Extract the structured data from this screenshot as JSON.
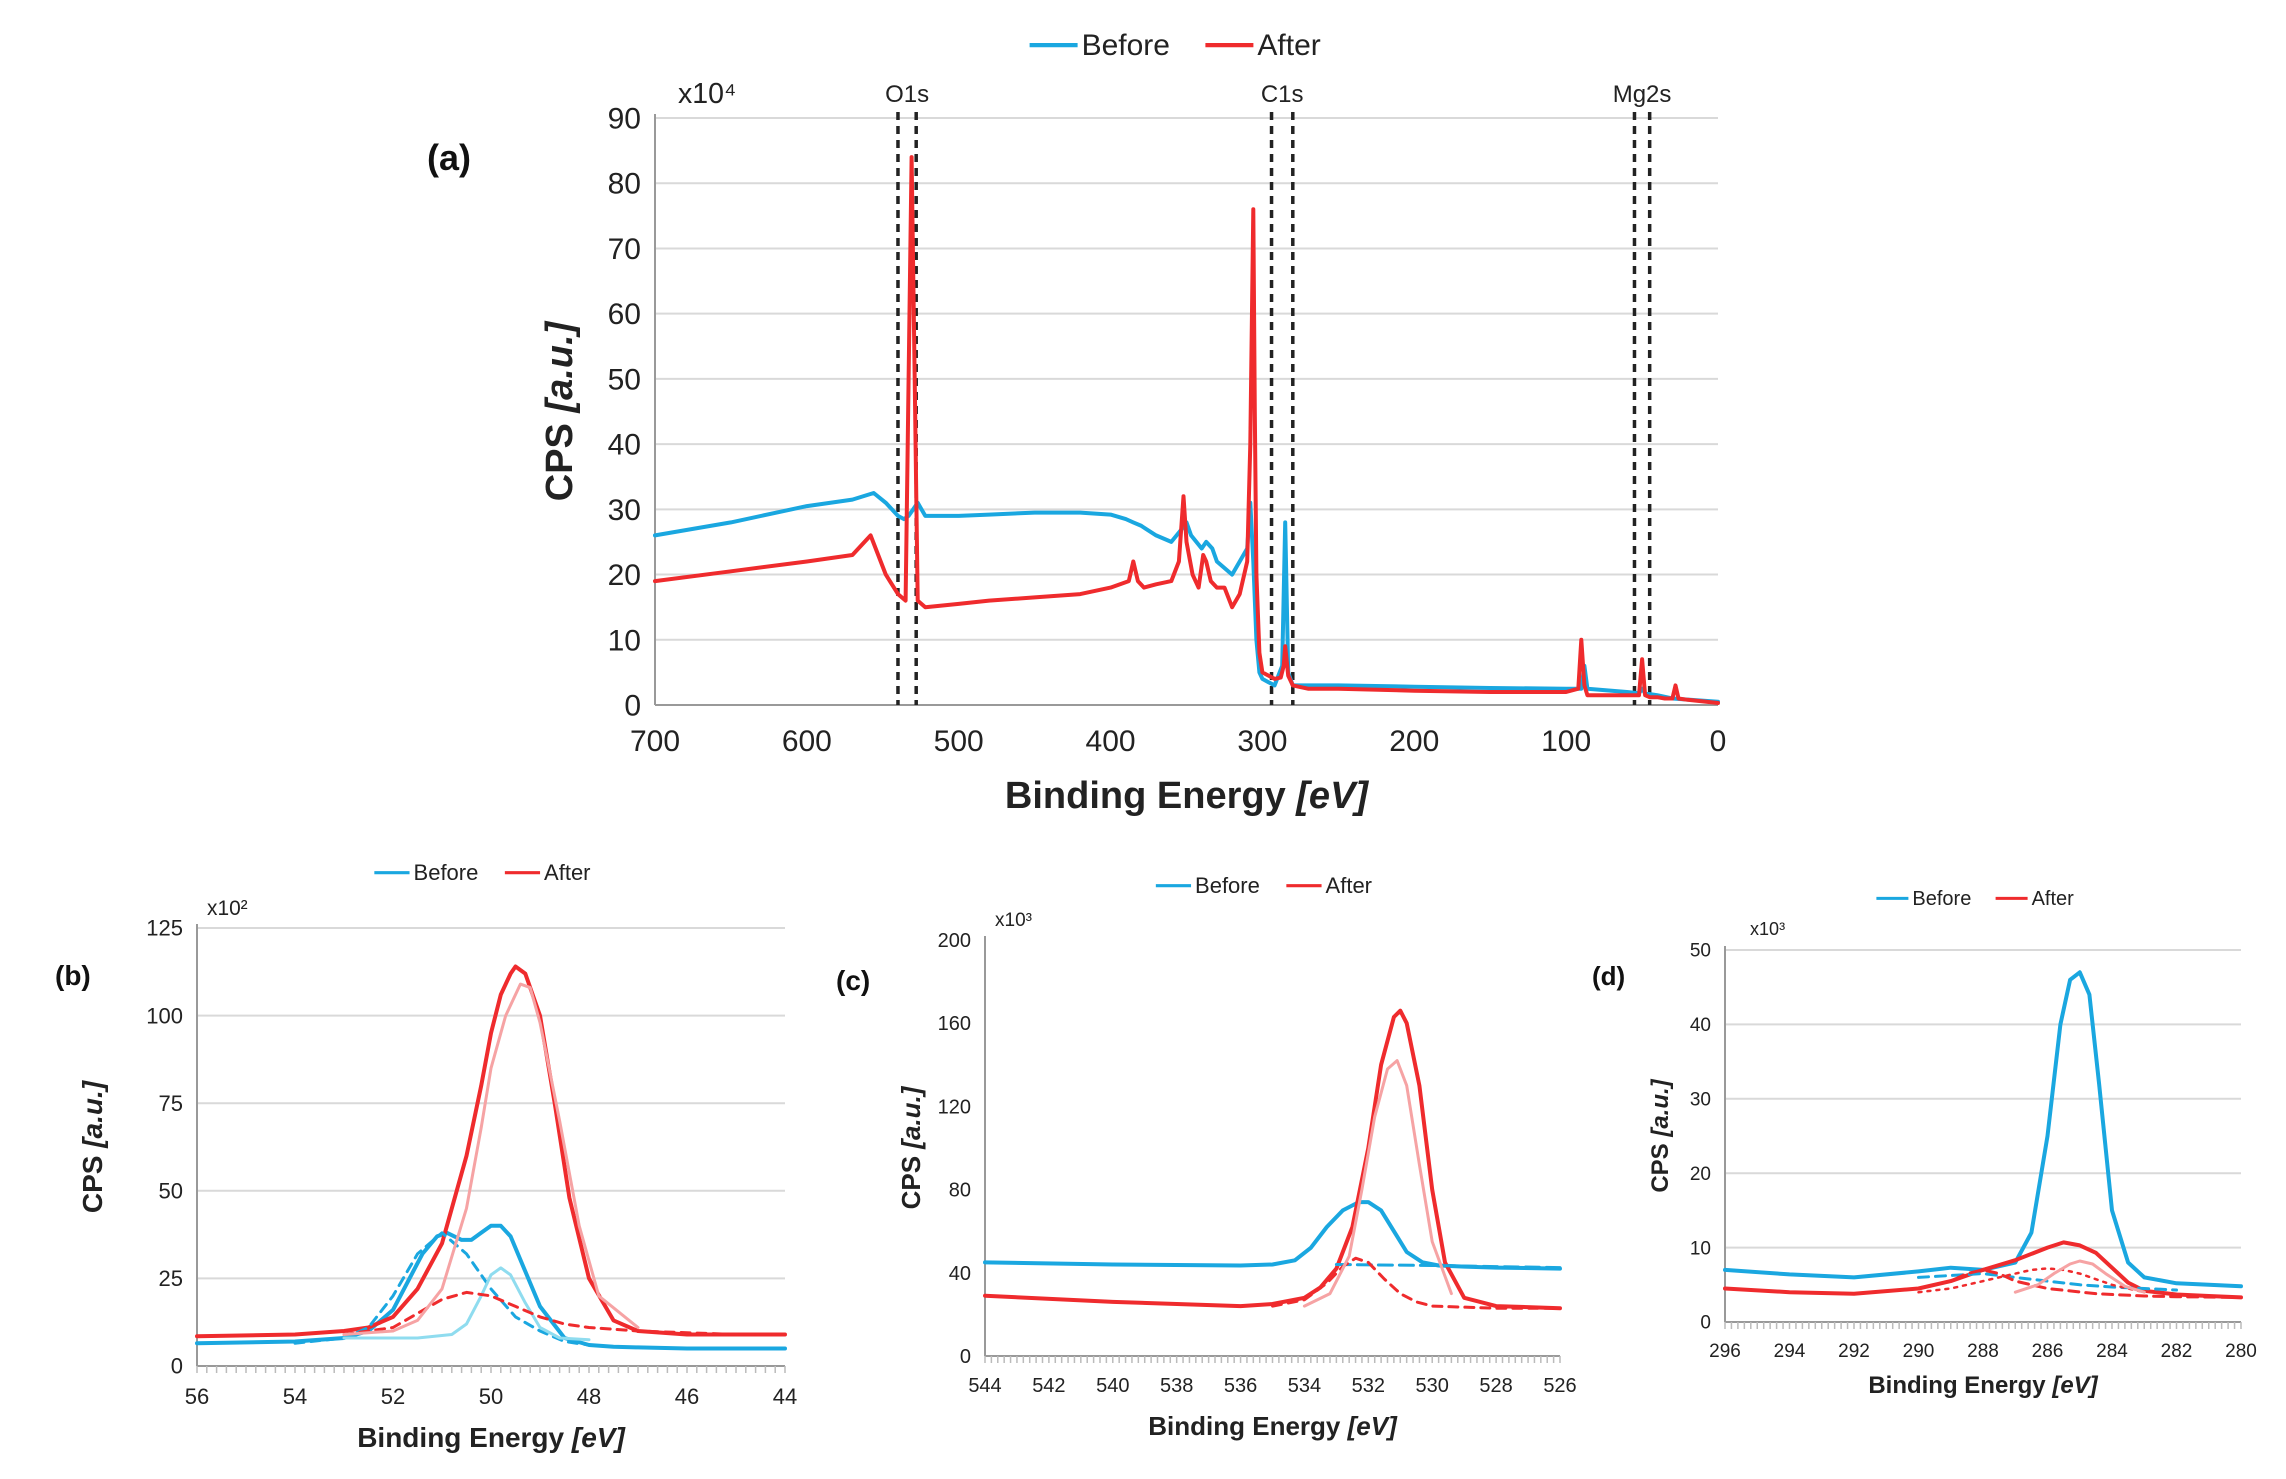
{
  "colors": {
    "before": "#1aa7e0",
    "after": "#ef2b2d",
    "before_light": "#8fdcef",
    "after_light": "#f6a3a4",
    "grid": "#d9d9d9"
  },
  "chart_data": [
    {
      "id": "a",
      "panel_label": "(a)",
      "type": "line",
      "title": "",
      "xlabel": "Binding Energy",
      "xlabel_unit": "[eV]",
      "ylabel": "CPS",
      "ylabel_unit": "[a.u.]",
      "multiplier": "x10⁴",
      "xlim": [
        700,
        0
      ],
      "ylim": [
        0,
        90
      ],
      "xticks": [
        700,
        600,
        500,
        400,
        300,
        200,
        100,
        0
      ],
      "yticks": [
        0,
        10,
        20,
        30,
        40,
        50,
        60,
        70,
        80,
        90
      ],
      "grid": true,
      "legend": "top",
      "annotations": [
        {
          "text": "O1s",
          "lines": [
            540,
            528
          ]
        },
        {
          "text": "C1s",
          "lines": [
            294,
            280
          ]
        },
        {
          "text": "Mg2s",
          "lines": [
            55,
            45
          ]
        }
      ],
      "series": [
        {
          "name": "Before",
          "color": "before",
          "width": 4,
          "x": [
            700,
            650,
            600,
            570,
            556,
            548,
            540,
            536,
            533,
            530,
            527,
            522,
            500,
            480,
            450,
            420,
            400,
            390,
            385,
            380,
            370,
            360,
            353,
            350,
            347,
            340,
            337,
            333,
            330,
            320,
            315,
            310,
            308,
            306,
            304,
            302,
            300,
            296,
            292,
            287,
            285,
            283,
            280,
            270,
            250,
            200,
            150,
            100,
            90,
            88,
            86,
            60,
            52,
            50,
            48,
            40,
            30,
            0
          ],
          "y": [
            26,
            28,
            30.5,
            31.5,
            32.5,
            31,
            29,
            28.5,
            29,
            30,
            31,
            29,
            29,
            29.2,
            29.5,
            29.5,
            29.2,
            28.5,
            28,
            27.5,
            26,
            25,
            27,
            28,
            26,
            24,
            25,
            24,
            22,
            20,
            22,
            24,
            31,
            22,
            10,
            5,
            4,
            3.5,
            3,
            6,
            28,
            5,
            3,
            3,
            3,
            2.8,
            2.6,
            2.5,
            2.5,
            6,
            2.5,
            2,
            1.8,
            2.5,
            1.8,
            1.5,
            1,
            0.5
          ]
        },
        {
          "name": "After",
          "color": "after",
          "width": 4,
          "x": [
            700,
            650,
            600,
            570,
            558,
            553,
            548,
            540,
            535,
            533,
            531,
            529,
            527,
            522,
            500,
            480,
            450,
            420,
            400,
            388,
            385,
            382,
            378,
            370,
            360,
            355,
            352,
            350,
            346,
            342,
            339,
            337,
            334,
            330,
            325,
            320,
            315,
            310,
            308,
            306,
            305,
            304,
            302,
            300,
            296,
            292,
            288,
            286,
            285,
            283,
            280,
            270,
            250,
            200,
            150,
            100,
            92,
            90,
            88,
            86,
            60,
            52,
            50,
            48,
            45,
            40,
            35,
            30,
            28,
            26,
            20,
            0
          ],
          "y": [
            19,
            20.5,
            22,
            23,
            26,
            23,
            20,
            17,
            16,
            50,
            84,
            50,
            16,
            15,
            15.5,
            16,
            16.5,
            17,
            18,
            19,
            22,
            19,
            18,
            18.5,
            19,
            22,
            32,
            25,
            20,
            18,
            23,
            22,
            19,
            18,
            18,
            15,
            17,
            22,
            40,
            76,
            45,
            20,
            8,
            5,
            4.5,
            4,
            4.2,
            6,
            9,
            4.5,
            3,
            2.5,
            2.5,
            2.2,
            2,
            2,
            2.5,
            10,
            3,
            1.5,
            1.5,
            1.5,
            7,
            1.5,
            1.2,
            1.2,
            1,
            1,
            3,
            1,
            0.8,
            0.3
          ]
        }
      ]
    },
    {
      "id": "b",
      "panel_label": "(b)",
      "type": "line",
      "title": "",
      "xlabel": "Binding Energy",
      "xlabel_unit": "[eV]",
      "ylabel": "CPS",
      "ylabel_unit": "[a.u.]",
      "multiplier": "x10²",
      "xlim": [
        56,
        44
      ],
      "ylim": [
        0,
        125
      ],
      "xticks": [
        56,
        54,
        52,
        50,
        48,
        46,
        44
      ],
      "yticks": [
        0,
        25,
        50,
        75,
        100,
        125
      ],
      "grid": true,
      "legend": "top",
      "series": [
        {
          "name": "Before",
          "legend": true,
          "color": "before",
          "width": 4,
          "x": [
            56,
            54,
            53,
            52.5,
            52,
            51.7,
            51.4,
            51.1,
            50.9,
            50.6,
            50.4,
            50.2,
            50,
            49.8,
            49.6,
            49.3,
            49,
            48.5,
            48,
            47.5,
            47,
            46,
            45,
            44
          ],
          "y": [
            6.5,
            7,
            8,
            10,
            16,
            24,
            32,
            37,
            38,
            36,
            36,
            38,
            40,
            40,
            37,
            27,
            17,
            8,
            6,
            5.5,
            5.3,
            5,
            5,
            5
          ]
        },
        {
          "name": "After",
          "legend": true,
          "color": "after",
          "width": 4,
          "x": [
            56,
            54,
            53,
            52.5,
            52,
            51.5,
            51,
            50.5,
            50.2,
            50,
            49.8,
            49.6,
            49.5,
            49.3,
            49,
            48.7,
            48.4,
            48,
            47.5,
            47,
            46,
            45,
            44
          ],
          "y": [
            8.5,
            9,
            10,
            11,
            14,
            22,
            35,
            60,
            80,
            95,
            106,
            112,
            114,
            112,
            100,
            75,
            48,
            25,
            13,
            10,
            9,
            9,
            9
          ]
        },
        {
          "name": "Before fit 1",
          "legend": false,
          "color": "before",
          "width": 3,
          "dash": "9,7",
          "x": [
            54,
            53,
            52.5,
            52,
            51.5,
            51,
            50.5,
            50,
            49.5,
            49,
            48.5,
            48,
            47.5
          ],
          "y": [
            6.5,
            8,
            11,
            20,
            32,
            38,
            32,
            22,
            14,
            10,
            7,
            6,
            5.5
          ]
        },
        {
          "name": "Before fit 2",
          "legend": false,
          "color": "before_light",
          "width": 3,
          "x": [
            53,
            51.5,
            50.8,
            50.5,
            50.2,
            50,
            49.8,
            49.6,
            49.3,
            49,
            48.6,
            48
          ],
          "y": [
            8,
            8,
            9,
            12,
            20,
            26,
            28,
            26,
            18,
            11,
            8,
            7.5
          ]
        },
        {
          "name": "After fit 1",
          "legend": false,
          "color": "after",
          "width": 3,
          "dash": "9,7",
          "x": [
            53,
            52,
            51.5,
            51,
            50.5,
            50,
            49.5,
            49,
            48.5,
            48,
            47,
            46,
            45,
            44
          ],
          "y": [
            9,
            11,
            15,
            19,
            21,
            20,
            17,
            14,
            12,
            11,
            10,
            9.5,
            9,
            9
          ]
        },
        {
          "name": "After fit 2",
          "legend": false,
          "color": "after_light",
          "width": 3,
          "x": [
            53,
            52,
            51.5,
            51,
            50.5,
            50.2,
            50,
            49.7,
            49.4,
            49.2,
            49,
            48.6,
            48.2,
            47.8,
            47
          ],
          "y": [
            9,
            10,
            13,
            22,
            45,
            68,
            85,
            100,
            109,
            108,
            98,
            70,
            40,
            20,
            11
          ]
        }
      ]
    },
    {
      "id": "c",
      "panel_label": "(c)",
      "type": "line",
      "title": "",
      "xlabel": "Binding Energy",
      "xlabel_unit": "[eV]",
      "ylabel": "CPS",
      "ylabel_unit": "[a.u.]",
      "multiplier": "x10³",
      "xlim": [
        544,
        526
      ],
      "ylim": [
        0,
        200
      ],
      "xticks": [
        544,
        542,
        540,
        538,
        536,
        534,
        532,
        530,
        528,
        526
      ],
      "yticks": [
        0,
        40,
        80,
        120,
        160,
        200
      ],
      "grid": false,
      "legend": "top",
      "series": [
        {
          "name": "Before",
          "legend": true,
          "color": "before",
          "width": 4,
          "x": [
            544,
            540,
            536,
            535,
            534.3,
            533.8,
            533.3,
            532.8,
            532.3,
            532,
            531.6,
            531.2,
            530.8,
            530.3,
            529.8,
            529,
            528,
            526
          ],
          "y": [
            45,
            44,
            43.5,
            44,
            46,
            52,
            62,
            70,
            74,
            74,
            70,
            60,
            50,
            45,
            43.5,
            43,
            42.5,
            42
          ]
        },
        {
          "name": "After",
          "legend": true,
          "color": "after",
          "width": 4,
          "x": [
            544,
            540,
            536,
            535,
            534,
            533.5,
            533,
            532.5,
            532,
            531.6,
            531.2,
            531,
            530.8,
            530.4,
            530,
            529.6,
            529,
            528,
            526
          ],
          "y": [
            29,
            26,
            24,
            25,
            28,
            33,
            42,
            62,
            100,
            140,
            163,
            166,
            160,
            130,
            80,
            45,
            28,
            24,
            23
          ]
        },
        {
          "name": "Before fit",
          "legend": false,
          "color": "before",
          "width": 3,
          "dash": "14,7",
          "x": [
            533,
            530,
            528,
            526
          ],
          "y": [
            44,
            43.5,
            43,
            42.5
          ]
        },
        {
          "name": "After fit 1",
          "legend": false,
          "color": "after",
          "width": 3,
          "dash": "9,7",
          "x": [
            535,
            534,
            533.3,
            532.8,
            532.4,
            532,
            531.5,
            531,
            530.5,
            530,
            528,
            526
          ],
          "y": [
            24,
            27,
            35,
            43,
            47,
            45,
            37,
            30,
            26,
            24,
            23,
            23
          ]
        },
        {
          "name": "After fit 2",
          "legend": false,
          "color": "after_light",
          "width": 3,
          "x": [
            534,
            533.2,
            532.6,
            532.2,
            531.8,
            531.4,
            531.1,
            530.8,
            530.4,
            530,
            529.4
          ],
          "y": [
            24,
            30,
            48,
            80,
            115,
            138,
            142,
            130,
            92,
            55,
            30
          ]
        }
      ]
    },
    {
      "id": "d",
      "panel_label": "(d)",
      "type": "line",
      "title": "",
      "xlabel": "Binding Energy",
      "xlabel_unit": "[eV]",
      "ylabel": "CPS",
      "ylabel_unit": "[a.u.]",
      "multiplier": "x10³",
      "xlim": [
        296,
        280
      ],
      "ylim": [
        0,
        50
      ],
      "xticks": [
        296,
        294,
        292,
        290,
        288,
        286,
        284,
        282,
        280
      ],
      "yticks": [
        0,
        10,
        20,
        30,
        40,
        50
      ],
      "grid": true,
      "legend": "top",
      "series": [
        {
          "name": "Before",
          "legend": true,
          "color": "before",
          "width": 4,
          "x": [
            296,
            294,
            292,
            290,
            289,
            288,
            287,
            286.5,
            286,
            285.6,
            285.3,
            285,
            284.7,
            284.4,
            284,
            283.5,
            283,
            282,
            281,
            280
          ],
          "y": [
            7,
            6.4,
            6,
            6.8,
            7.3,
            7,
            8,
            12,
            25,
            40,
            46,
            47,
            44,
            32,
            15,
            8,
            6,
            5.2,
            5,
            4.8
          ]
        },
        {
          "name": "After",
          "legend": true,
          "color": "after",
          "width": 4,
          "x": [
            296,
            294,
            292,
            290,
            289,
            288,
            287,
            286,
            285.5,
            285,
            284.5,
            284,
            283.5,
            283,
            282,
            281,
            280
          ],
          "y": [
            4.5,
            4,
            3.8,
            4.5,
            5.5,
            7,
            8.3,
            10,
            10.7,
            10.3,
            9.3,
            7.3,
            5.3,
            4.2,
            3.7,
            3.5,
            3.3
          ]
        },
        {
          "name": "Before fit",
          "legend": false,
          "color": "before",
          "width": 3,
          "dash": "10,7",
          "x": [
            290,
            288,
            287,
            286,
            285,
            284,
            283,
            282
          ],
          "y": [
            6,
            6.5,
            6,
            5.5,
            5,
            4.7,
            4.5,
            4.3
          ]
        },
        {
          "name": "After fit 1",
          "legend": false,
          "color": "after",
          "width": 3,
          "dash": "10,7",
          "x": [
            292,
            290,
            289,
            288.5,
            288,
            287.5,
            287,
            286,
            284.5,
            283,
            282,
            280
          ],
          "y": [
            3.8,
            4.5,
            5.5,
            6.5,
            7,
            6.5,
            5.5,
            4.5,
            3.8,
            3.5,
            3.4,
            3.3
          ]
        },
        {
          "name": "After fit 2",
          "legend": false,
          "color": "after",
          "width": 2.5,
          "dash": "3,6",
          "x": [
            290,
            289,
            288,
            287,
            286.5,
            286,
            285.5,
            285,
            284,
            283
          ],
          "y": [
            4,
            4.5,
            5.5,
            6.5,
            7,
            7.2,
            7,
            6.5,
            5,
            4
          ]
        },
        {
          "name": "After fit 3",
          "legend": false,
          "color": "after_light",
          "width": 3,
          "x": [
            287,
            286.3,
            285.8,
            285.3,
            285,
            284.6,
            284.2,
            283.6,
            283
          ],
          "y": [
            4,
            5,
            6.5,
            7.8,
            8.2,
            7.8,
            6.5,
            4.8,
            4
          ]
        }
      ]
    }
  ]
}
